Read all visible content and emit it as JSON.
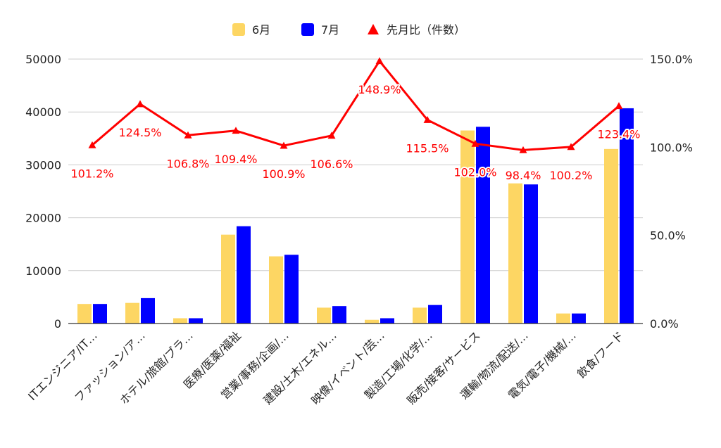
{
  "chart_data": {
    "type": "bar",
    "categories": [
      "ITエンジニア/IT…",
      "ファッション/ア…",
      "ホテル/旅館/ブラ…",
      "医療/医薬/福祉",
      "営業/事務/企画/…",
      "建設/土木/エネル…",
      "映像/イベント/芸…",
      "製造/工場/化学/…",
      "販売/接客/サービス",
      "運輸/物流/配送/…",
      "電気/電子/機械/…",
      "飲食/フード"
    ],
    "series": [
      {
        "name": "6月",
        "type": "bar",
        "axis": "left",
        "color": "#fdd663",
        "values": [
          3700,
          3900,
          1000,
          16800,
          12700,
          3000,
          700,
          3000,
          36500,
          26500,
          1900,
          33000
        ]
      },
      {
        "name": "7月",
        "type": "bar",
        "axis": "left",
        "color": "#0000ff",
        "values": [
          3700,
          4800,
          1000,
          18400,
          13000,
          3300,
          1000,
          3500,
          37200,
          26300,
          1900,
          40700
        ]
      },
      {
        "name": "先月比（件数）",
        "type": "line",
        "axis": "right",
        "color": "#ff0000",
        "marker": "triangle",
        "values": [
          101.2,
          124.5,
          106.8,
          109.4,
          100.9,
          106.6,
          148.9,
          115.5,
          102.0,
          98.4,
          100.2,
          123.4
        ],
        "labels": [
          "101.2%",
          "124.5%",
          "106.8%",
          "109.4%",
          "100.9%",
          "106.6%",
          "148.9%",
          "115.5%",
          "102.0%",
          "98.4%",
          "100.2%",
          "123.4%"
        ]
      }
    ],
    "y_left": {
      "ylim": [
        0,
        50000
      ],
      "ticks": [
        0,
        10000,
        20000,
        30000,
        40000,
        50000
      ],
      "tick_labels": [
        "0",
        "10000",
        "20000",
        "30000",
        "40000",
        "50000"
      ]
    },
    "y_right": {
      "ylim": [
        0,
        150
      ],
      "ticks": [
        0,
        50,
        100,
        150
      ],
      "tick_labels": [
        "0.0%",
        "50.0%",
        "100.0%",
        "150.0%"
      ]
    },
    "title": "",
    "xlabel": "",
    "ylabel": "",
    "grid": true,
    "legend": "top-center",
    "colors": {
      "grid": "#cccccc",
      "axis": "#333333",
      "text": "#222222",
      "label_red": "#ff0000"
    }
  }
}
